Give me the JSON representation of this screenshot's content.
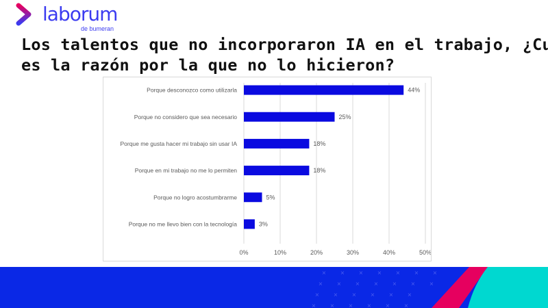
{
  "logo": {
    "brand": "laborum",
    "sub": "de bumeran"
  },
  "title": {
    "line1": "Los talentos que no incorporaron IA en el trabajo, ¿Cuál",
    "line2": "es la razón por la que no lo hicieron?"
  },
  "colors": {
    "bar": "#0a0ae0",
    "band": "#0a28e6",
    "pink": "#e6005f",
    "teal": "#00d8d0",
    "grid": "#d9d9d9",
    "label": "#595959"
  },
  "chart_data": {
    "type": "bar",
    "orientation": "horizontal",
    "categories": [
      "Porque desconozco como utilizarla",
      "Porque no considero que sea necesario",
      "Porque me gusta hacer mi trabajo sin usar IA",
      "Porque en mi trabajo no me lo permiten",
      "Porque no logro acostumbrarme",
      "Porque no me llevo bien con la tecnología"
    ],
    "values": [
      44,
      25,
      18,
      18,
      5,
      3
    ],
    "data_labels": [
      "44%",
      "25%",
      "18%",
      "18%",
      "5%",
      "3%"
    ],
    "xlim": [
      0,
      50
    ],
    "xticks": [
      0,
      10,
      20,
      30,
      40,
      50
    ],
    "xtick_labels": [
      "0%",
      "10%",
      "20%",
      "30%",
      "40%",
      "50%"
    ],
    "grid": true,
    "legend": "none",
    "xlabel": "",
    "ylabel": ""
  }
}
